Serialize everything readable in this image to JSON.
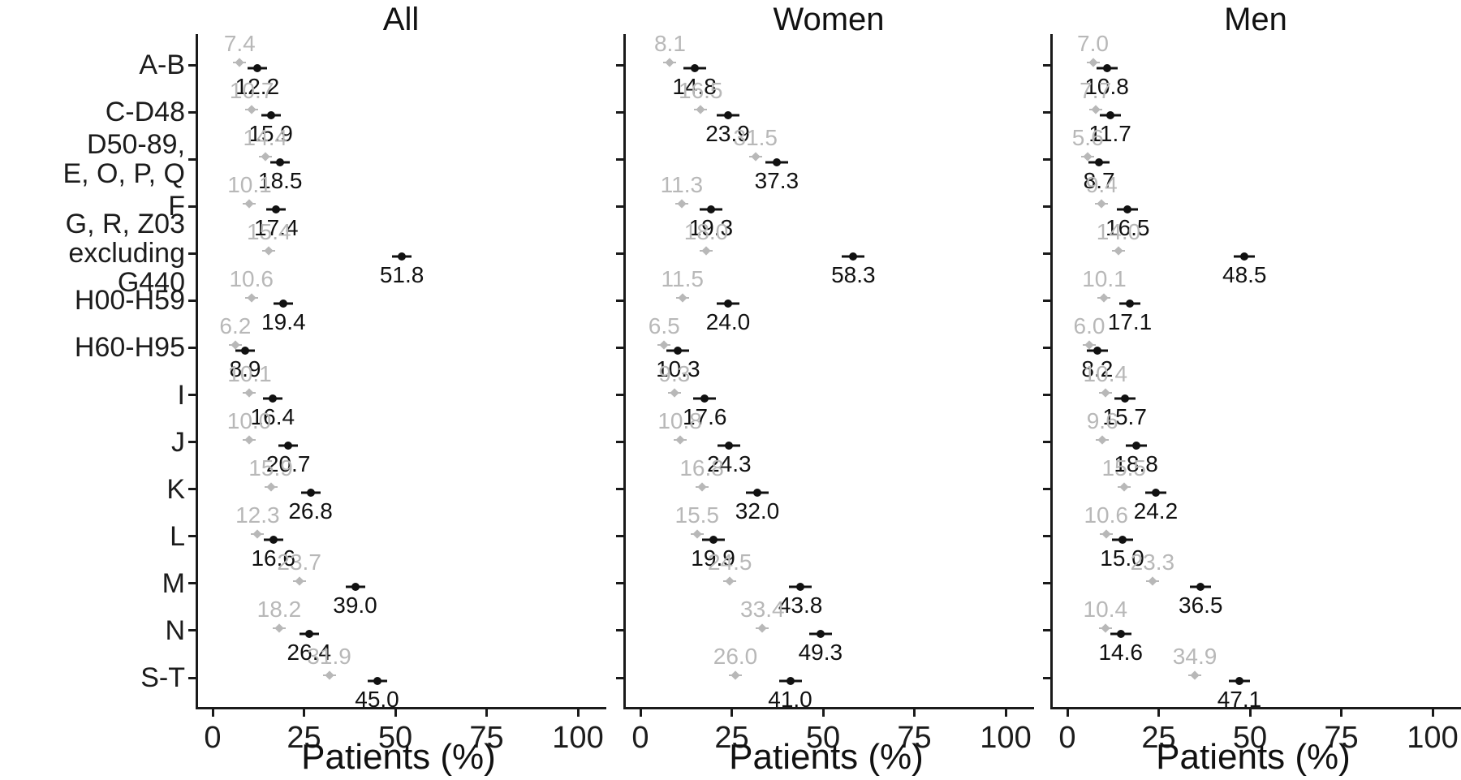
{
  "chart_data": {
    "type": "scatter",
    "description": "Three-panel horizontal dot plot (forest-plot style) with gray and black point estimates and error bars per ICD chapter category",
    "xlabel": "Patients (%)",
    "x_ticks": [
      0,
      25,
      50,
      75,
      100
    ],
    "xlim": [
      0,
      100
    ],
    "grid": false,
    "legend": "none",
    "series_colors": {
      "gray": "#b8b8b8",
      "black": "#111111"
    },
    "categories": [
      "A-B",
      "C-D48",
      "D50-89,\nE, O, P, Q",
      "F",
      "G, R, Z03\nexcluding G440",
      "H00-H59",
      "H60-H95",
      "I",
      "J",
      "K",
      "L",
      "M",
      "N",
      "S-T"
    ],
    "panels": [
      {
        "title": "All",
        "gray": [
          7.4,
          10.7,
          14.4,
          10.1,
          15.4,
          10.6,
          6.2,
          10.1,
          10.0,
          15.9,
          12.3,
          23.7,
          18.2,
          31.9
        ],
        "black": [
          12.2,
          15.9,
          18.5,
          17.4,
          51.8,
          19.4,
          8.9,
          16.4,
          20.7,
          26.8,
          16.6,
          39.0,
          26.4,
          45.0
        ]
      },
      {
        "title": "Women",
        "gray": [
          8.1,
          16.5,
          31.5,
          11.3,
          18.0,
          11.5,
          6.5,
          9.3,
          10.8,
          16.8,
          15.5,
          24.5,
          33.4,
          26.0
        ],
        "black": [
          14.8,
          23.9,
          37.3,
          19.3,
          58.3,
          24.0,
          10.3,
          17.6,
          24.3,
          32.0,
          19.9,
          43.8,
          49.3,
          41.0
        ]
      },
      {
        "title": "Men",
        "gray": [
          7.0,
          7.7,
          5.6,
          9.4,
          14.0,
          10.1,
          6.0,
          10.4,
          9.6,
          15.5,
          10.6,
          23.3,
          10.4,
          34.9
        ],
        "black": [
          10.8,
          11.7,
          8.7,
          16.5,
          48.5,
          17.1,
          8.2,
          15.7,
          18.8,
          24.2,
          15.0,
          36.5,
          14.6,
          47.1
        ]
      }
    ]
  }
}
